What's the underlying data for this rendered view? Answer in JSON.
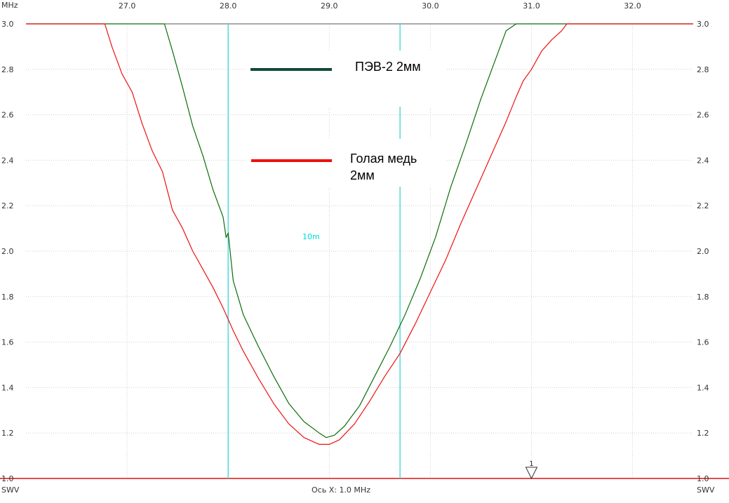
{
  "chart_data": {
    "type": "line",
    "top_left_unit": "MHz",
    "bottom_left_unit": "SWV",
    "bottom_right_unit": "SWV",
    "xlabel": "Ось X: 1.0 MHz",
    "xlim": [
      26.0,
      32.6
    ],
    "ylim": [
      1.0,
      3.0
    ],
    "x_ticks": [
      "27.0",
      "28.0",
      "29.0",
      "30.0",
      "31.0",
      "32.0"
    ],
    "y_ticks": [
      "1.0",
      "1.2",
      "1.4",
      "1.6",
      "1.8",
      "2.0",
      "2.2",
      "2.4",
      "2.6",
      "2.8",
      "3.0"
    ],
    "band_label": "10m",
    "band_edges": [
      28.0,
      29.7
    ],
    "marker": {
      "label": "1",
      "x": 31.0
    },
    "series": [
      {
        "name": "ПЭВ-2 2мм",
        "color": "#0a6e0a",
        "x": [
          26.0,
          27.37,
          27.45,
          27.55,
          27.65,
          27.75,
          27.85,
          27.95,
          27.98,
          28.0,
          28.05,
          28.15,
          28.3,
          28.45,
          28.6,
          28.75,
          28.9,
          28.97,
          29.05,
          29.15,
          29.3,
          29.45,
          29.6,
          29.75,
          29.9,
          30.05,
          30.2,
          30.35,
          30.5,
          30.65,
          30.75,
          30.85,
          31.0,
          32.6
        ],
        "y": [
          3.0,
          3.0,
          2.88,
          2.72,
          2.55,
          2.42,
          2.27,
          2.15,
          2.06,
          2.08,
          1.87,
          1.72,
          1.58,
          1.45,
          1.33,
          1.25,
          1.2,
          1.18,
          1.19,
          1.23,
          1.32,
          1.45,
          1.58,
          1.72,
          1.88,
          2.06,
          2.28,
          2.47,
          2.67,
          2.85,
          2.97,
          3.0,
          3.0,
          3.0
        ]
      },
      {
        "name": "Голая медь\n2мм",
        "color": "#ee1111",
        "x": [
          26.0,
          26.78,
          26.85,
          26.95,
          27.05,
          27.15,
          27.25,
          27.35,
          27.45,
          27.55,
          27.65,
          27.75,
          27.85,
          27.95,
          28.05,
          28.15,
          28.3,
          28.45,
          28.6,
          28.75,
          28.9,
          29.0,
          29.1,
          29.25,
          29.4,
          29.55,
          29.7,
          29.85,
          30.0,
          30.15,
          30.3,
          30.45,
          30.6,
          30.75,
          30.85,
          30.92,
          31.0,
          31.1,
          31.2,
          31.3,
          31.35,
          32.6
        ],
        "y": [
          3.0,
          3.0,
          2.9,
          2.78,
          2.7,
          2.56,
          2.44,
          2.35,
          2.18,
          2.1,
          2.0,
          1.92,
          1.84,
          1.75,
          1.65,
          1.56,
          1.44,
          1.33,
          1.24,
          1.18,
          1.15,
          1.15,
          1.17,
          1.24,
          1.34,
          1.45,
          1.55,
          1.68,
          1.82,
          1.96,
          2.12,
          2.27,
          2.42,
          2.57,
          2.68,
          2.75,
          2.8,
          2.88,
          2.93,
          2.97,
          3.0,
          3.0
        ]
      }
    ],
    "legend_labels": [
      "ПЭВ-2 2мм",
      "Голая медь",
      "2мм"
    ]
  }
}
